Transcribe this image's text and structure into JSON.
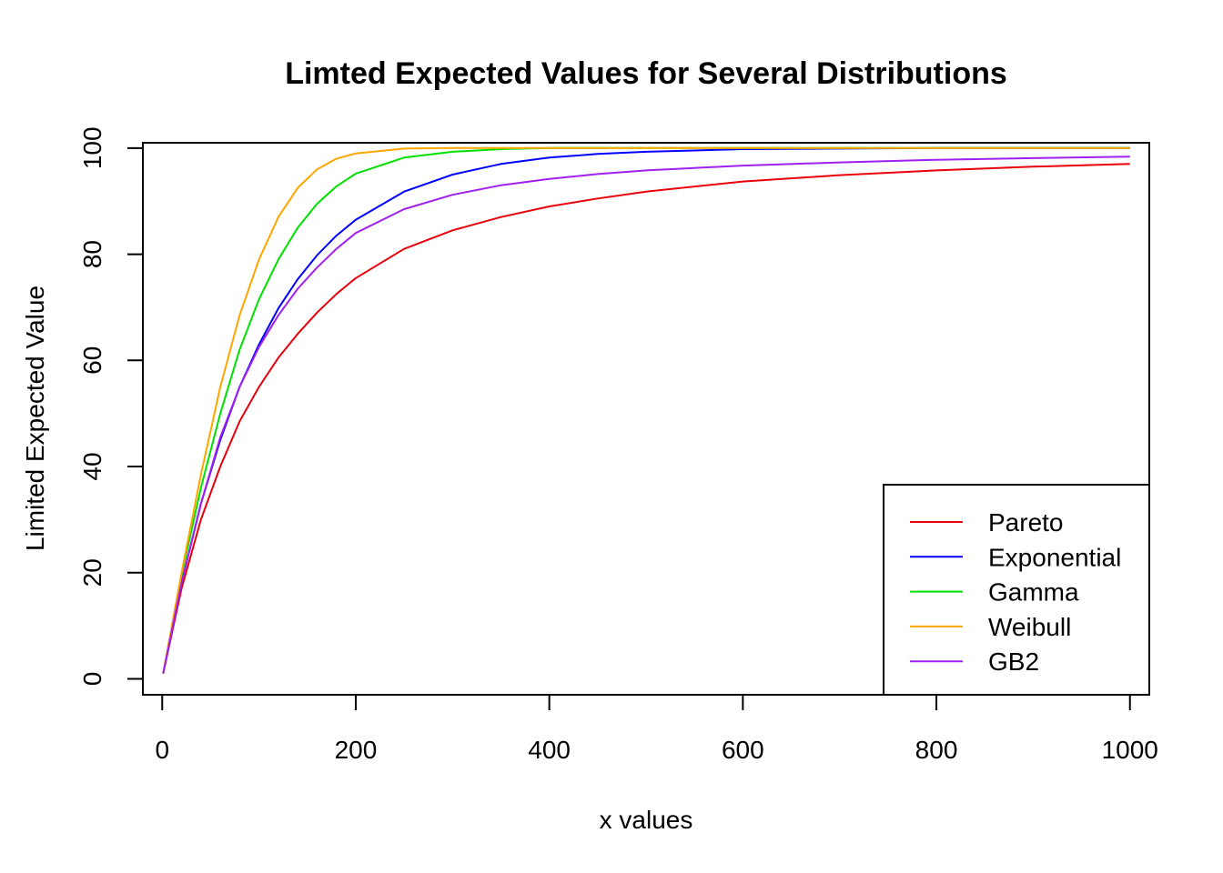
{
  "chart_data": {
    "type": "line",
    "title": "Limted Expected Values for Several Distributions",
    "xlabel": "x values",
    "ylabel": "Limited Expected Value",
    "xlim": [
      -20,
      1020
    ],
    "ylim": [
      -3,
      101
    ],
    "x_ticks": [
      0,
      200,
      400,
      600,
      800,
      1000
    ],
    "y_ticks": [
      0,
      20,
      40,
      60,
      80,
      100
    ],
    "x_tick_labels": [
      "0",
      "200",
      "400",
      "600",
      "800",
      "1000"
    ],
    "y_tick_labels": [
      "0",
      "20",
      "40",
      "60",
      "80",
      "100"
    ],
    "grid": false,
    "legend_position": "bottom-right",
    "x": [
      1,
      20,
      40,
      60,
      80,
      100,
      120,
      140,
      160,
      180,
      200,
      250,
      300,
      350,
      400,
      450,
      500,
      600,
      700,
      800,
      900,
      1000
    ],
    "series": [
      {
        "name": "Pareto",
        "color": "#e8000b",
        "values": [
          1,
          17,
          30,
          40,
          48.5,
          55,
          60.5,
          65,
          69,
          72.5,
          75.5,
          81,
          84.5,
          87,
          89,
          90.5,
          91.8,
          93.7,
          94.9,
          95.8,
          96.5,
          97.0
        ]
      },
      {
        "name": "Exponential",
        "color": "#0000ff",
        "values": [
          1,
          18.1,
          33,
          45,
          55,
          63,
          69.8,
          75.3,
          79.8,
          83.5,
          86.5,
          91.8,
          95.0,
          97.0,
          98.2,
          98.9,
          99.3,
          99.8,
          99.9,
          100,
          100,
          100
        ]
      },
      {
        "name": "Gamma",
        "color": "#00e000",
        "values": [
          1,
          19.5,
          36,
          50,
          62,
          71.5,
          79,
          85,
          89.5,
          92.8,
          95.2,
          98.2,
          99.3,
          99.8,
          100,
          100,
          100,
          100,
          100,
          100,
          100,
          100
        ]
      },
      {
        "name": "Weibull",
        "color": "#ffa500",
        "values": [
          1,
          20,
          38.5,
          55,
          68.5,
          79,
          87,
          92.5,
          96,
          98,
          99,
          99.9,
          100,
          100,
          100,
          100,
          100,
          100,
          100,
          100,
          100,
          100
        ]
      },
      {
        "name": "GB2",
        "color": "#a020f0",
        "values": [
          1,
          18,
          33,
          45.5,
          55,
          62.5,
          68.5,
          73.5,
          77.5,
          81,
          84,
          88.5,
          91.2,
          93,
          94.2,
          95.1,
          95.8,
          96.7,
          97.3,
          97.8,
          98.1,
          98.4
        ]
      }
    ]
  }
}
